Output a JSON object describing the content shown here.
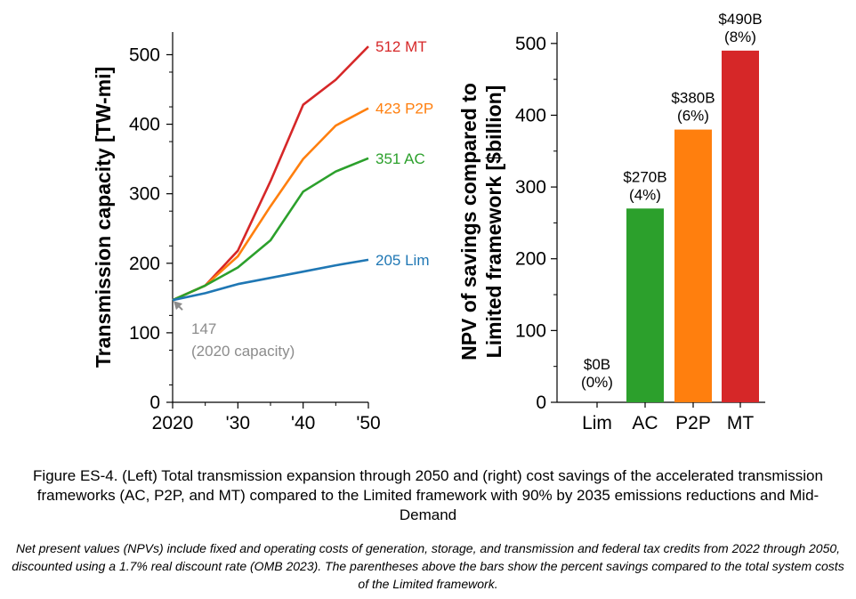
{
  "chart_data": [
    {
      "type": "line",
      "ylabel": "Transmission capacity [TW-mi]",
      "xlim": [
        2020,
        2050
      ],
      "ylim": [
        0,
        520
      ],
      "xticks": [
        2020,
        2030,
        2040,
        2050
      ],
      "xtick_labels": [
        "2020",
        "'30",
        "'40",
        "'50"
      ],
      "yticks": [
        0,
        100,
        200,
        300,
        400,
        500
      ],
      "ytick_labels": [
        "0",
        "100",
        "200",
        "300",
        "400",
        "500"
      ],
      "grid": false,
      "legend": "end-of-line labels",
      "series": [
        {
          "name": "MT",
          "end_label": "512  MT",
          "color": "#d62728",
          "x": [
            2020,
            2025,
            2030,
            2035,
            2040,
            2045,
            2050
          ],
          "values": [
            147,
            168,
            218,
            318,
            428,
            464,
            512
          ]
        },
        {
          "name": "P2P",
          "end_label": "423  P2P",
          "color": "#ff7f0e",
          "x": [
            2020,
            2025,
            2030,
            2035,
            2040,
            2045,
            2050
          ],
          "values": [
            147,
            168,
            210,
            282,
            350,
            398,
            423
          ]
        },
        {
          "name": "AC",
          "end_label": "351  AC",
          "color": "#2ca02c",
          "x": [
            2020,
            2025,
            2030,
            2035,
            2040,
            2045,
            2050
          ],
          "values": [
            147,
            168,
            194,
            233,
            303,
            332,
            351
          ]
        },
        {
          "name": "Lim",
          "end_label": "205  Lim",
          "color": "#1f77b4",
          "x": [
            2020,
            2025,
            2030,
            2035,
            2040,
            2045,
            2050
          ],
          "values": [
            147,
            157,
            170,
            179,
            188,
            197,
            205
          ]
        }
      ],
      "annotation": {
        "value_label": "147",
        "text": "(2020 capacity)",
        "x": 2020,
        "y": 147,
        "color": "#8c8c8c"
      }
    },
    {
      "type": "bar",
      "ylabel_line1": "NPV of savings compared to",
      "ylabel_line2": "Limited framework [$billion]",
      "categories": [
        "Lim",
        "AC",
        "P2P",
        "MT"
      ],
      "values": [
        0,
        270,
        380,
        490
      ],
      "colors": [
        "#1f77b4",
        "#2ca02c",
        "#ff7f0e",
        "#d62728"
      ],
      "data_labels": [
        "$0B",
        "$270B",
        "$380B",
        "$490B"
      ],
      "percent_labels": [
        "(0%)",
        "(4%)",
        "(6%)",
        "(8%)"
      ],
      "ylim": [
        0,
        520
      ],
      "yticks": [
        0,
        100,
        200,
        300,
        400,
        500
      ],
      "ytick_labels": [
        "0",
        "100",
        "200",
        "300",
        "400",
        "500"
      ],
      "grid": false
    }
  ],
  "caption": "Figure ES-4. (Left) Total transmission expansion through 2050 and (right) cost savings of the accelerated transmission frameworks (AC, P2P, and MT) compared to the Limited framework with 90% by 2035 emissions reductions and Mid-Demand",
  "note": "Net present values (NPVs) include fixed and operating costs of generation, storage, and transmission and federal tax credits from 2022 through 2050, discounted using a 1.7% real discount rate (OMB 2023). The parentheses above the bars show the percent savings compared to the total system costs of the Limited framework."
}
